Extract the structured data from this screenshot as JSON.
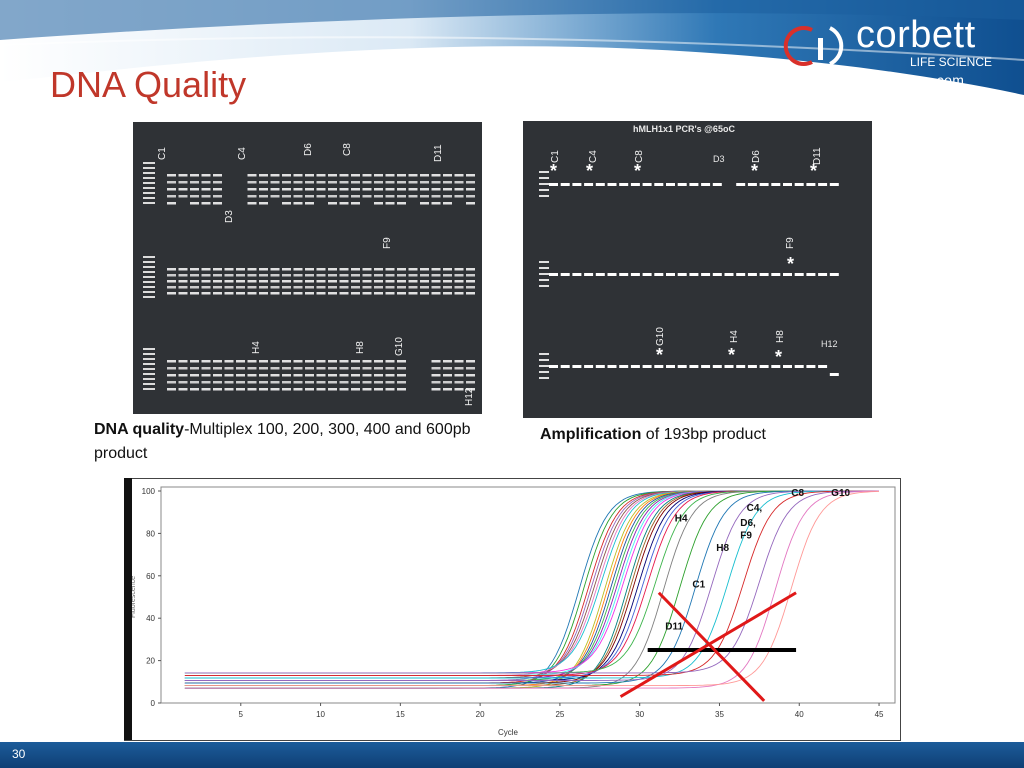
{
  "slide": {
    "title": "DNA Quality",
    "page_number": "30"
  },
  "logo": {
    "word": "corbett",
    "subtitle": "LIFE SCIENCE",
    "url": "www.corbettlifescience.com"
  },
  "gel_left": {
    "top_labels": [
      "C1",
      "C4",
      "D6",
      "C8",
      "D11"
    ],
    "top_label_below": "D3",
    "mid_label": "F9",
    "bottom_labels": [
      "H4",
      "H8",
      "G10"
    ],
    "bottom_label_low": "H12"
  },
  "gel_right": {
    "title": "hMLH1x1 PCR's @65oC",
    "row1_labels": [
      "C1",
      "C4",
      "C8",
      "D6",
      "D11"
    ],
    "row1_d3": "D3",
    "row2_labels": [
      "F9"
    ],
    "row3_labels": [
      "G10",
      "H4",
      "H8"
    ],
    "row3_h12": "H12",
    "star": "*"
  },
  "captions": {
    "left_bold": "DNA quality",
    "left_rest": "-Multiplex 100, 200, 300, 400 and 600pb product",
    "right_bold": "Amplification",
    "right_rest": " of 193bp product"
  },
  "chart_data": {
    "type": "line",
    "xlabel": "Cycle",
    "ylabel": "Fluorescence",
    "xlim": [
      0,
      46
    ],
    "ylim": [
      0,
      100
    ],
    "x_ticks": [
      5,
      10,
      15,
      20,
      25,
      30,
      35,
      40,
      45
    ],
    "y_ticks": [
      0,
      20,
      40,
      60,
      80,
      100
    ],
    "threshold": 25,
    "annotations": [
      {
        "text": "C8",
        "x": 39.5,
        "y": 99
      },
      {
        "text": "G10",
        "x": 42,
        "y": 99
      },
      {
        "text": "C4,",
        "x": 36.7,
        "y": 92
      },
      {
        "text": "D6,",
        "x": 36.3,
        "y": 85
      },
      {
        "text": "F9",
        "x": 36.3,
        "y": 79
      },
      {
        "text": "H4",
        "x": 32.2,
        "y": 87
      },
      {
        "text": "H8",
        "x": 34.8,
        "y": 73
      },
      {
        "text": "C1",
        "x": 33.3,
        "y": 56
      },
      {
        "text": "D11",
        "x": 31.6,
        "y": 36
      }
    ],
    "series": [
      {
        "values_note": "",
        "midpoint": 26.2,
        "color": "#1f77b4"
      },
      {
        "midpoint": 26.5,
        "color": "#2ca02c"
      },
      {
        "midpoint": 26.8,
        "color": "#d62728"
      },
      {
        "midpoint": 27.0,
        "color": "#9467bd"
      },
      {
        "midpoint": 27.2,
        "color": "#8c564b"
      },
      {
        "midpoint": 27.4,
        "color": "#e377c2"
      },
      {
        "midpoint": 27.6,
        "color": "#17becf"
      },
      {
        "midpoint": 27.8,
        "color": "#bcbd22"
      },
      {
        "midpoint": 28.0,
        "color": "#ff7f0e"
      },
      {
        "midpoint": 28.2,
        "color": "#1f4fa0"
      },
      {
        "midpoint": 28.4,
        "color": "#3cb44b"
      },
      {
        "midpoint": 28.6,
        "color": "#911eb4"
      },
      {
        "midpoint": 28.8,
        "color": "#46f0f0"
      },
      {
        "midpoint": 29.0,
        "color": "#f032e6"
      },
      {
        "midpoint": 29.2,
        "color": "#008080"
      },
      {
        "midpoint": 29.4,
        "color": "#9a6324"
      },
      {
        "midpoint": 29.6,
        "color": "#800000"
      },
      {
        "midpoint": 29.9,
        "color": "#000075"
      },
      {
        "midpoint": 30.2,
        "color": "#4363d8"
      },
      {
        "midpoint": 30.5,
        "color": "#e6194b"
      },
      {
        "midpoint": 31.0,
        "color": "#3cb44b"
      },
      {
        "midpoint": 31.5,
        "color": "#7f7f7f"
      },
      {
        "midpoint": 32.5,
        "color": "#2ca02c"
      },
      {
        "midpoint": 33.5,
        "color": "#1f77b4"
      },
      {
        "midpoint": 34.5,
        "color": "#9467bd"
      },
      {
        "midpoint": 35.5,
        "color": "#17becf"
      },
      {
        "midpoint": 36.5,
        "color": "#d62728"
      },
      {
        "midpoint": 37.5,
        "color": "#9467bd"
      },
      {
        "midpoint": 38.5,
        "color": "#e377c2"
      },
      {
        "midpoint": 39.5,
        "color": "#ff9896"
      }
    ]
  }
}
